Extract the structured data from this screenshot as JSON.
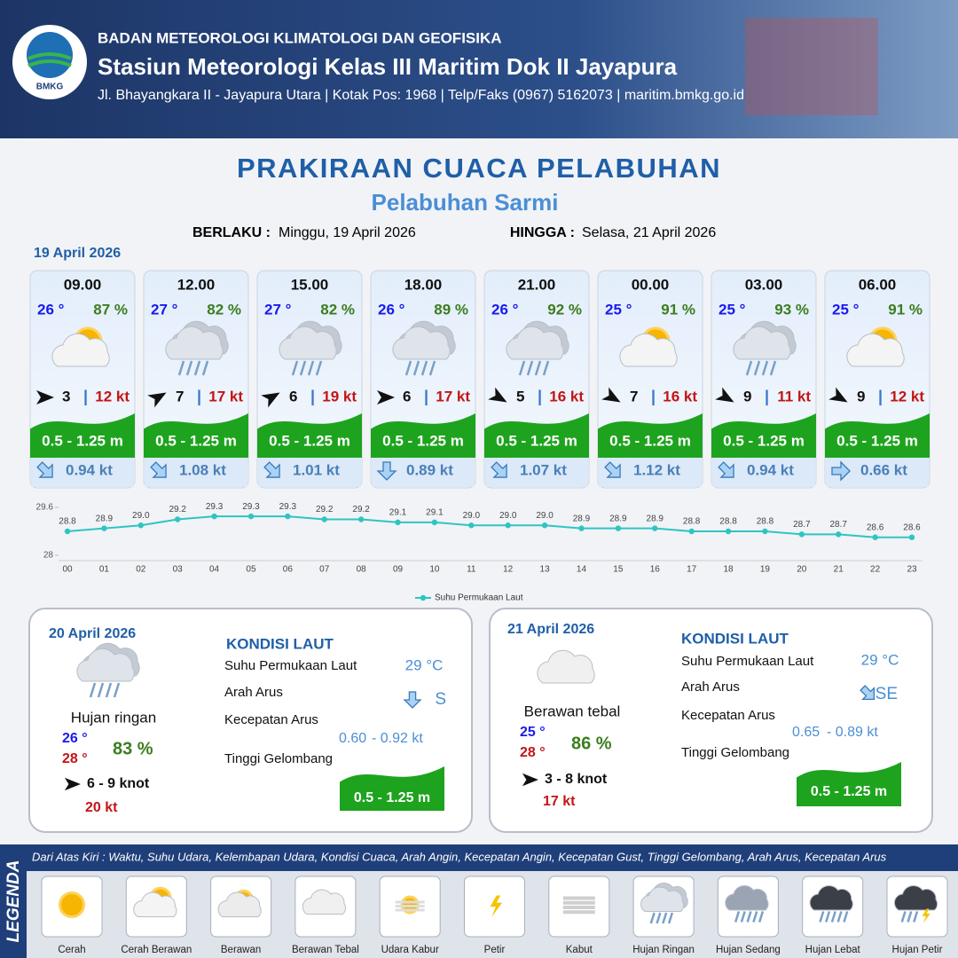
{
  "header": {
    "logo_text": "BMKG",
    "org": "BADAN METEOROLOGI KLIMATOLOGI DAN GEOFISIKA",
    "station": "Stasiun Meteorologi Kelas III Maritim Dok II Jayapura",
    "address": "Jl. Bhayangkara II - Jayapura Utara | Kotak Pos: 1968 | Telp/Faks (0967) 5162073 | maritim.bmkg.go.id"
  },
  "title": "PRAKIRAAN CUACA PELABUHAN",
  "subtitle": "Pelabuhan Sarmi",
  "validity": {
    "from_label": "BERLAKU :",
    "from": "Minggu, 19 April 2026",
    "to_label": "HINGGA :",
    "to": "Selasa, 21 April 2026"
  },
  "day1": {
    "date": "19 April 2026",
    "cards": [
      {
        "time": "09.00",
        "temp": "26 °",
        "humidity": "87 %",
        "wind": "3",
        "gust": "12 kt",
        "wave": "0.5 - 1.25 m",
        "current": "0.94 kt"
      },
      {
        "time": "12.00",
        "temp": "27 °",
        "humidity": "82 %",
        "wind": "7",
        "gust": "17 kt",
        "wave": "0.5 - 1.25 m",
        "current": "1.08 kt"
      },
      {
        "time": "15.00",
        "temp": "27 °",
        "humidity": "82 %",
        "wind": "6",
        "gust": "19 kt",
        "wave": "0.5 - 1.25 m",
        "current": "1.01 kt"
      },
      {
        "time": "18.00",
        "temp": "26 °",
        "humidity": "89 %",
        "wind": "6",
        "gust": "17 kt",
        "wave": "0.5 - 1.25 m",
        "current": "0.89 kt"
      },
      {
        "time": "21.00",
        "temp": "26 °",
        "humidity": "92 %",
        "wind": "5",
        "gust": "16 kt",
        "wave": "0.5 - 1.25 m",
        "current": "1.07 kt"
      },
      {
        "time": "00.00",
        "temp": "25 °",
        "humidity": "91 %",
        "wind": "7",
        "gust": "16 kt",
        "wave": "0.5 - 1.25 m",
        "current": "1.12 kt"
      },
      {
        "time": "03.00",
        "temp": "25 °",
        "humidity": "93 %",
        "wind": "9",
        "gust": "11 kt",
        "wave": "0.5 - 1.25 m",
        "current": "0.94 kt"
      },
      {
        "time": "06.00",
        "temp": "25 °",
        "humidity": "91 %",
        "wind": "9",
        "gust": "12 kt",
        "wave": "0.5 - 1.25 m",
        "current": "0.66 kt"
      }
    ]
  },
  "chart_data": {
    "type": "line",
    "categories": [
      "00",
      "01",
      "02",
      "03",
      "04",
      "05",
      "06",
      "07",
      "08",
      "09",
      "10",
      "11",
      "12",
      "13",
      "14",
      "15",
      "16",
      "17",
      "18",
      "19",
      "20",
      "21",
      "22",
      "23"
    ],
    "series": [
      {
        "name": "Suhu Permukaan Laut",
        "color": "#2ec4c4",
        "values": [
          28.8,
          28.9,
          29.0,
          29.2,
          29.3,
          29.3,
          29.3,
          29.2,
          29.2,
          29.1,
          29.1,
          29.0,
          29.0,
          29.0,
          28.9,
          28.9,
          28.9,
          28.8,
          28.8,
          28.8,
          28.7,
          28.7,
          28.6,
          28.6
        ],
        "value_labels": [
          "28.8",
          "28.9",
          "29.0",
          "29.2",
          "29.3",
          "29.3",
          "29.3",
          "29.2",
          "29.2",
          "29.1",
          "29.1",
          "29.0",
          "29.0",
          "29.0",
          "28.9",
          "28.9",
          "28.9",
          "28.8",
          "28.8",
          "28.8",
          "28.7",
          "28.7",
          "28.6",
          "28.6"
        ]
      }
    ],
    "ylim": [
      28,
      29.6
    ],
    "yticks": [
      28,
      29.6
    ],
    "legend": "bottom"
  },
  "days": [
    {
      "date": "20 April 2026",
      "condition": "Hujan ringan",
      "tmin": "26 °",
      "tmax": "28 °",
      "humidity": "83 %",
      "wind": "6 - 9 knot",
      "gust": "20 kt",
      "sea_title": "KONDISI LAUT",
      "sst_label": "Suhu Permukaan Laut",
      "sst": "29 °C",
      "dir_label": "Arah Arus",
      "dir": "S",
      "speed_label": "Kecepatan Arus",
      "speed_min": "0.60",
      "speed_max": "-  0.92 kt",
      "wave_label": "Tinggi Gelombang",
      "wave": "0.5 - 1.25 m"
    },
    {
      "date": "21 April 2026",
      "condition": "Berawan tebal",
      "tmin": "25 °",
      "tmax": "28 °",
      "humidity": "86 %",
      "wind": "3 - 8 knot",
      "gust": "17 kt",
      "sea_title": "KONDISI LAUT",
      "sst_label": "Suhu Permukaan Laut",
      "sst": "29 °C",
      "dir_label": "Arah Arus",
      "dir": "SE",
      "speed_label": "Kecepatan Arus",
      "speed_min": "0.65",
      "speed_max": "-  0.89 kt",
      "wave_label": "Tinggi Gelombang",
      "wave": "0.5 - 1.25 m"
    }
  ],
  "legend": {
    "title": "LEGENDA",
    "description": "Dari Atas Kiri : Waktu, Suhu Udara, Kelembapan Udara, Kondisi Cuaca, Arah Angin, Kecepatan Angin, Kecepatan Gust, Tinggi Gelombang, Arah Arus, Kecepatan Arus",
    "items": [
      "Cerah",
      "Cerah Berawan",
      "Berawan",
      "Berawan Tebal",
      "Udara Kabur",
      "Petir",
      "Kabut",
      "Hujan Ringan",
      "Hujan Sedang",
      "Hujan Lebat",
      "Hujan Petir"
    ]
  }
}
